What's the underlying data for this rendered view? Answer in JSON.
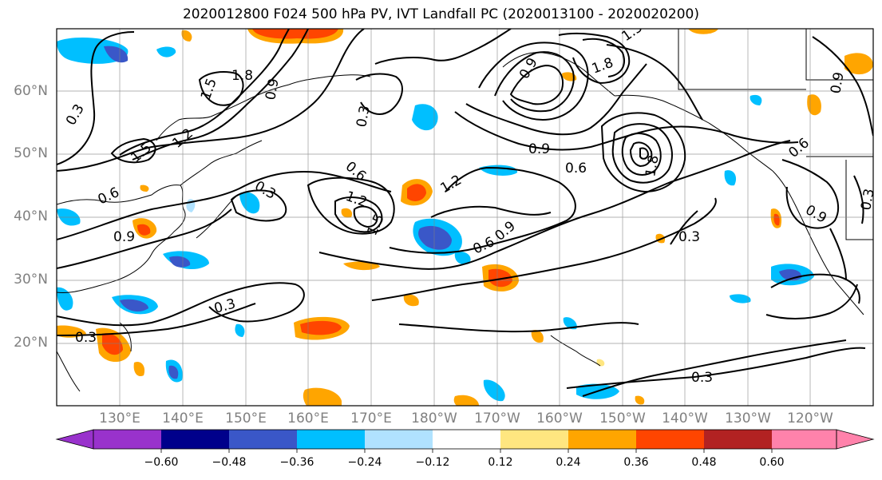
{
  "title": "2020012800 F024 500 hPa PV, IVT Landfall PC (2020013100 - 2020020200)",
  "map": {
    "lat_labels": [
      "60°N",
      "50°N",
      "40°N",
      "30°N",
      "20°N"
    ],
    "lon_labels": [
      "130°E",
      "140°E",
      "150°E",
      "160°E",
      "170°E",
      "180°W",
      "170°W",
      "160°W",
      "150°W",
      "140°W",
      "130°W",
      "120°W"
    ],
    "contour_labels": [
      "0.3",
      "0.3",
      "0.3",
      "0.3",
      "0.3",
      "0.3",
      "0.3",
      "0.6",
      "0.6",
      "0.6",
      "0.6",
      "0.6",
      "0.9",
      "0.9",
      "0.9",
      "0.9",
      "0.9",
      "1.2",
      "1.2",
      "1.5",
      "1.5",
      "1.5",
      "1.8",
      "1.8",
      "1.8",
      "1.5",
      "0.9",
      "1.2",
      "0.3",
      "0.9"
    ],
    "contour_color": "#000000",
    "grid": true
  },
  "colorbar": {
    "ticks": [
      "−0.60",
      "−0.48",
      "−0.36",
      "−0.24",
      "−0.12",
      "0.12",
      "0.24",
      "0.36",
      "0.48",
      "0.60"
    ],
    "colors": [
      "#9932cc",
      "#00008b",
      "#3a57c8",
      "#00bfff",
      "#b0e2ff",
      "#ffffff",
      "#ffe680",
      "#ffa500",
      "#ff4500",
      "#b22222",
      "#ff82ab"
    ]
  }
}
